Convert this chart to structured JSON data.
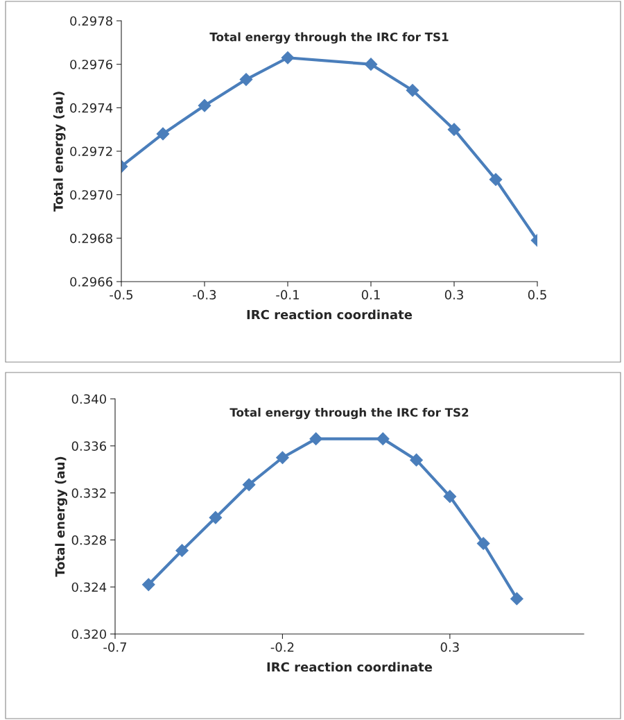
{
  "chart_data": [
    {
      "type": "line",
      "title": "Total energy through the IRC for TS1",
      "xlabel": "IRC reaction coordinate",
      "ylabel": "Total energy (au)",
      "x": [
        -0.5,
        -0.4,
        -0.3,
        -0.2,
        -0.1,
        0.1,
        0.2,
        0.3,
        0.4,
        0.5
      ],
      "series": [
        {
          "color": "#4a7ebb",
          "values": [
            0.29713,
            0.29728,
            0.29741,
            0.29753,
            0.29763,
            0.2976,
            0.29748,
            0.2973,
            0.29707,
            0.29679
          ]
        }
      ],
      "xlim": [
        -0.5,
        0.5
      ],
      "xticks": [
        -0.5,
        -0.3,
        -0.1,
        0.1,
        0.3,
        0.5
      ],
      "ylim": [
        0.2966,
        0.2978
      ],
      "yticks": [
        0.2966,
        0.2968,
        {
          "value": 0.297,
          "label": "0.2970"
        },
        0.2972,
        0.2974,
        0.2976,
        0.2978
      ],
      "marker": "diamond"
    },
    {
      "type": "line",
      "title": "Total energy through the IRC for TS2",
      "xlabel": "IRC reaction coordinate",
      "ylabel": "Total energy (au)",
      "x": [
        -0.6,
        -0.5,
        -0.4,
        -0.3,
        -0.2,
        -0.1,
        0.1,
        0.2,
        0.3,
        0.4,
        0.5
      ],
      "series": [
        {
          "color": "#4a7ebb",
          "values": [
            0.3242,
            0.3271,
            0.3299,
            0.3327,
            0.335,
            0.3366,
            0.3366,
            0.3348,
            0.3317,
            0.3277,
            0.323
          ]
        }
      ],
      "xlim": [
        -0.7,
        0.7
      ],
      "xticks": [
        -0.7,
        -0.2,
        0.3
      ],
      "ylim": [
        0.32,
        0.34
      ],
      "yticks": [
        {
          "value": 0.32,
          "label": "0.320"
        },
        {
          "value": 0.324,
          "label": "0.324"
        },
        {
          "value": 0.328,
          "label": "0.328"
        },
        {
          "value": 0.332,
          "label": "0.332"
        },
        {
          "value": 0.336,
          "label": "0.336"
        },
        {
          "value": 0.34,
          "label": "0.340"
        }
      ],
      "marker": "diamond"
    }
  ]
}
